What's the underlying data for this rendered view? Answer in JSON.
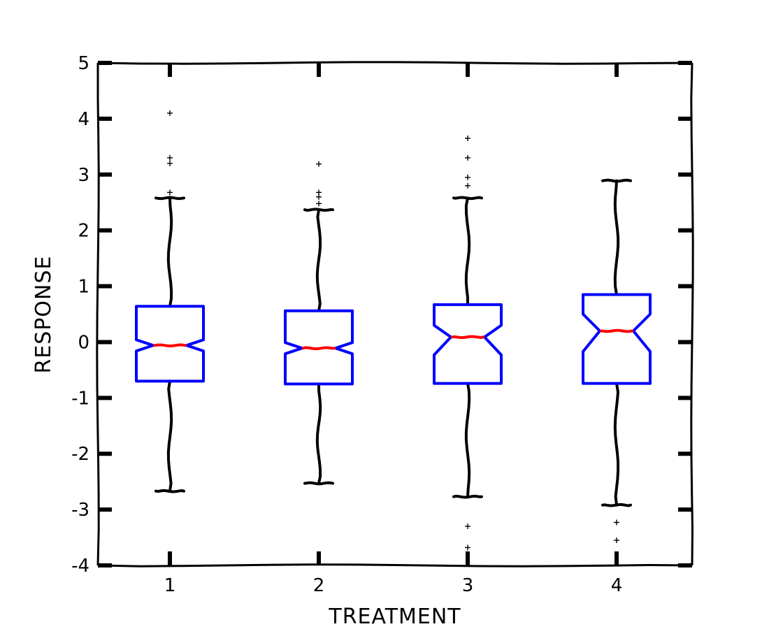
{
  "chart_data": {
    "type": "boxplot",
    "notched": true,
    "xlabel": "TREATMENT",
    "ylabel": "RESPONSE",
    "categories": [
      "1",
      "2",
      "3",
      "4"
    ],
    "ylim": [
      -4,
      5
    ],
    "yticks": [
      -4,
      -3,
      -2,
      -1,
      0,
      1,
      2,
      3,
      4,
      5
    ],
    "grid": false,
    "box_color": "#0000ff",
    "median_color": "#ff0000",
    "whisker_color": "#000000",
    "boxes": [
      {
        "label": "1",
        "whislo": -2.67,
        "q1": -0.7,
        "med": -0.06,
        "q3": 0.64,
        "whishi": 2.58,
        "notch_lo": -0.16,
        "notch_hi": 0.04,
        "fliers": [
          4.1,
          3.3,
          3.2,
          2.68
        ]
      },
      {
        "label": "2",
        "whislo": -2.53,
        "q1": -0.75,
        "med": -0.11,
        "q3": 0.56,
        "whishi": 2.37,
        "notch_lo": -0.21,
        "notch_hi": -0.01,
        "fliers": [
          3.19,
          2.68,
          2.6,
          2.48
        ]
      },
      {
        "label": "3",
        "whislo": -2.77,
        "q1": -0.74,
        "med": 0.09,
        "q3": 0.67,
        "whishi": 2.58,
        "notch_lo": -0.23,
        "notch_hi": 0.3,
        "fliers": [
          3.65,
          3.3,
          2.95,
          2.8,
          -3.3,
          -3.68
        ]
      },
      {
        "label": "4",
        "whislo": -2.92,
        "q1": -0.74,
        "med": 0.2,
        "q3": 0.85,
        "whishi": 2.89,
        "notch_lo": -0.17,
        "notch_hi": 0.5,
        "fliers": [
          -3.23,
          -3.55
        ]
      }
    ]
  }
}
